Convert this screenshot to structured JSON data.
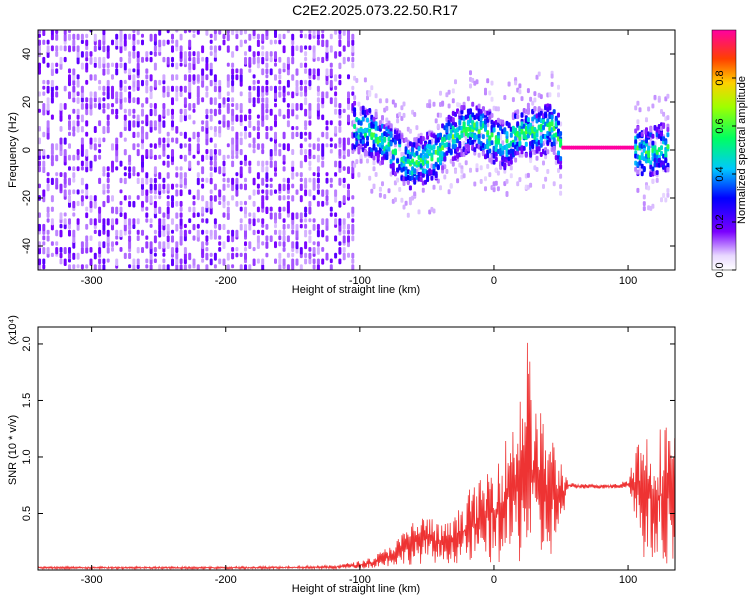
{
  "title": "C2E2.2025.073.22.50.R17",
  "chart_data": [
    {
      "type": "heatmap",
      "xlabel": "Height of straight line (km)",
      "ylabel": "Frequency (Hz)",
      "xlim": [
        -340,
        135
      ],
      "ylim": [
        -50,
        50
      ],
      "x_ticks": [
        "-300",
        "-200",
        "-100",
        "0",
        "100"
      ],
      "x_tick_values": [
        -300,
        -200,
        -100,
        0,
        100
      ],
      "y_ticks": [
        "-40",
        "-20",
        "0",
        "20",
        "40"
      ],
      "y_tick_values": [
        -40,
        -20,
        0,
        20,
        40
      ],
      "colorbar": {
        "label": "Normalized spectral amplitude",
        "range": [
          0,
          1
        ],
        "ticks": [
          "0.0",
          "0.2",
          "0.4",
          "0.6",
          "0.8"
        ],
        "tick_values": [
          0.0,
          0.2,
          0.4,
          0.6,
          0.8
        ],
        "colormap": "rainbow-white"
      },
      "ridge": {
        "x": [
          -105,
          -95,
          -85,
          -75,
          -65,
          -55,
          -45,
          -35,
          -25,
          -15,
          -5,
          5,
          15,
          25,
          35,
          43,
          50,
          60,
          70,
          80,
          90,
          100,
          103,
          110,
          120,
          130
        ],
        "y": [
          10,
          8,
          4,
          0,
          -6,
          -4,
          -2,
          4,
          8,
          10,
          6,
          2,
          6,
          8,
          8,
          10,
          1,
          1,
          1,
          1,
          1,
          1,
          1,
          -1,
          0,
          2
        ]
      },
      "bands": [
        {
          "x_from": -340,
          "x_to": -105,
          "description": "broadband noise"
        },
        {
          "x_from": 50,
          "x_to": 103,
          "amplitude": 1.0
        }
      ]
    },
    {
      "type": "line",
      "xlabel": "Height of straight line (km)",
      "ylabel": "SNR (10 * v/v)",
      "y_multiplier": "(x10⁴)",
      "xlim": [
        -340,
        135
      ],
      "ylim": [
        0,
        2.15
      ],
      "x_ticks": [
        "-300",
        "-200",
        "-100",
        "0",
        "100"
      ],
      "x_tick_values": [
        -300,
        -200,
        -100,
        0,
        100
      ],
      "y_ticks": [
        "0.5",
        "1.0",
        "1.5",
        "2.0"
      ],
      "y_tick_values": [
        0.5,
        1.0,
        1.5,
        2.0
      ],
      "series": [
        {
          "color": "#ee3333",
          "envelope": {
            "x": [
              -340,
              -200,
              -120,
              -100,
              -90,
              -80,
              -70,
              -60,
              -50,
              -40,
              -30,
              -20,
              -10,
              0,
              10,
              20,
              25,
              30,
              40,
              50,
              55,
              60,
              70,
              80,
              90,
              100,
              103,
              110,
              120,
              130,
              135
            ],
            "low": [
              0.01,
              0.01,
              0.01,
              0.01,
              0.02,
              0.03,
              0.04,
              0.05,
              0.06,
              0.06,
              0.06,
              0.05,
              0.05,
              0.05,
              0.05,
              0.05,
              0.05,
              0.05,
              0.05,
              0.3,
              0.7,
              0.72,
              0.72,
              0.72,
              0.72,
              0.72,
              0.6,
              0.1,
              0.05,
              0.05,
              0.1
            ],
            "high": [
              0.03,
              0.03,
              0.04,
              0.08,
              0.12,
              0.2,
              0.3,
              0.45,
              0.5,
              0.4,
              0.45,
              0.7,
              0.8,
              1.0,
              1.2,
              1.65,
              2.1,
              1.5,
              1.3,
              1.0,
              0.8,
              0.76,
              0.76,
              0.76,
              0.76,
              0.8,
              1.0,
              1.3,
              1.2,
              1.4,
              1.2
            ]
          }
        }
      ]
    }
  ]
}
